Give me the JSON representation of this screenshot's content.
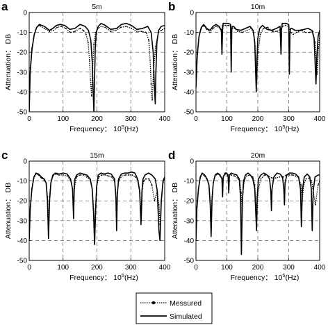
{
  "figure": {
    "xtick_unit_label": "10",
    "xtick_unit_exp": "5",
    "xtick_unit_suffix": "(Hz)",
    "legend": {
      "items": [
        "Messured",
        "Simulated"
      ]
    }
  },
  "chart_data": [
    {
      "panel_letter": "a",
      "type": "line",
      "title": "5m",
      "xlabel": "Frequency：",
      "ylabel": "Attenuation： DB",
      "xlim": [
        0,
        400
      ],
      "ylim": [
        -50,
        0
      ],
      "xticks": [
        0,
        100,
        200,
        300,
        400
      ],
      "yticks": [
        0,
        -10,
        -20,
        -30,
        -40,
        -50
      ],
      "grid": "dashed at x=100,200,300 and y=-10,-20,-30,-40",
      "series": [
        {
          "name": "Simulated",
          "style": "solid",
          "x": [
            0,
            3,
            8,
            15,
            22,
            30,
            45,
            60,
            70,
            80,
            92,
            105,
            120,
            135,
            150,
            165,
            175,
            182,
            186,
            189,
            191,
            193,
            195,
            198,
            204,
            212,
            225,
            240,
            258,
            272,
            287,
            302,
            318,
            335,
            350,
            360,
            366,
            369,
            372,
            374,
            377,
            382,
            390,
            400
          ],
          "y": [
            -50,
            -30,
            -19,
            -11,
            -7.5,
            -6,
            -7,
            -9,
            -8,
            -6.5,
            -6,
            -6.5,
            -8.5,
            -8,
            -6,
            -7,
            -9,
            -14,
            -25,
            -40,
            -50,
            -33,
            -18,
            -10,
            -7,
            -5.5,
            -6.5,
            -8.5,
            -8,
            -6,
            -5.5,
            -6.5,
            -8.5,
            -8,
            -7,
            -10,
            -20,
            -35,
            -46,
            -30,
            -15,
            -9,
            -7,
            -6.5
          ]
        },
        {
          "name": "Messured",
          "style": "dotted-with-markers",
          "x": [
            0,
            3,
            8,
            15,
            22,
            30,
            45,
            60,
            72,
            82,
            95,
            108,
            122,
            135,
            150,
            160,
            168,
            174,
            178,
            181,
            184,
            187,
            191,
            196,
            203,
            212,
            225,
            240,
            256,
            270,
            286,
            302,
            318,
            332,
            345,
            353,
            357,
            360,
            363,
            367,
            373,
            382,
            390,
            400
          ],
          "y": [
            -47,
            -28,
            -18,
            -11,
            -7.5,
            -6.5,
            -8,
            -9.5,
            -9,
            -7.5,
            -7,
            -8,
            -10,
            -9.5,
            -8,
            -9,
            -11,
            -15,
            -24,
            -34,
            -42,
            -28,
            -16,
            -10,
            -8,
            -7,
            -7.5,
            -9.5,
            -9,
            -7.5,
            -7,
            -8,
            -9.5,
            -9.5,
            -10,
            -14,
            -24,
            -36,
            -44,
            -30,
            -17,
            -10,
            -9,
            -8
          ]
        }
      ]
    },
    {
      "panel_letter": "b",
      "type": "line",
      "title": "10m",
      "xlabel": "Frequency：",
      "ylabel": "Attenuation： DB",
      "xlim": [
        0,
        400
      ],
      "ylim": [
        -50,
        0
      ],
      "xticks": [
        0,
        100,
        200,
        300,
        400
      ],
      "yticks": [
        0,
        -10,
        -20,
        -30,
        -40,
        -50
      ],
      "grid": "dashed at x=100,200,300 and y=-10,-20,-30,-40",
      "series": [
        {
          "name": "Simulated",
          "style": "solid",
          "x": [
            0,
            4,
            10,
            17,
            25,
            35,
            45,
            55,
            65,
            75,
            82,
            84,
            86,
            88,
            95,
            105,
            112,
            114,
            116,
            118,
            122,
            130,
            145,
            160,
            175,
            185,
            190,
            193,
            195,
            197,
            200,
            206,
            215,
            230,
            245,
            260,
            272,
            275,
            277,
            279,
            284,
            292,
            300,
            302,
            304,
            306,
            310,
            320,
            335,
            350,
            362,
            375,
            382,
            385,
            388,
            391,
            395,
            400
          ],
          "y": [
            -38,
            -22,
            -12,
            -7.5,
            -6,
            -8,
            -9,
            -7,
            -6,
            -7,
            -9,
            -21,
            -9,
            -5.5,
            -5.5,
            -5.5,
            -6,
            -30,
            -8,
            -7,
            -7,
            -8.5,
            -9,
            -8,
            -7,
            -9,
            -15,
            -30,
            -40,
            -25,
            -13,
            -8,
            -6.5,
            -8.5,
            -9,
            -8,
            -7,
            -21,
            -8,
            -5.5,
            -5.5,
            -5.5,
            -6,
            -31,
            -10,
            -8,
            -8,
            -9,
            -9,
            -8.5,
            -8,
            -9,
            -13,
            -24,
            -36,
            -22,
            -12,
            -9
          ]
        },
        {
          "name": "Messured",
          "style": "dotted-with-markers",
          "x": [
            0,
            4,
            10,
            17,
            25,
            35,
            45,
            55,
            65,
            75,
            82,
            86,
            95,
            105,
            112,
            118,
            125,
            135,
            150,
            165,
            178,
            186,
            191,
            194,
            197,
            201,
            208,
            218,
            232,
            248,
            262,
            274,
            280,
            290,
            300,
            306,
            315,
            325,
            340,
            355,
            367,
            378,
            385,
            389,
            392,
            396,
            400
          ],
          "y": [
            -36,
            -21,
            -12,
            -8,
            -6.5,
            -8.5,
            -10,
            -8,
            -7,
            -7.5,
            -9.5,
            -6.5,
            -6.5,
            -6.5,
            -7,
            -8,
            -8,
            -9.5,
            -10,
            -9,
            -8,
            -10,
            -17,
            -28,
            -34,
            -20,
            -11,
            -8,
            -7.5,
            -9.5,
            -9.5,
            -8.5,
            -7,
            -6.5,
            -7,
            -10,
            -11,
            -10,
            -9,
            -10,
            -10,
            -9.5,
            -15,
            -26,
            -31,
            -18,
            -12
          ]
        }
      ]
    },
    {
      "panel_letter": "c",
      "type": "line",
      "title": "15m",
      "xlabel": "Frequency：",
      "ylabel": "Attenuation： DB",
      "xlim": [
        0,
        400
      ],
      "ylim": [
        -50,
        0
      ],
      "xticks": [
        0,
        100,
        200,
        300,
        400
      ],
      "yticks": [
        0,
        -10,
        -20,
        -30,
        -40,
        -50
      ],
      "grid": "dashed at x=100,200,300 and y=-10,-20,-30,-40",
      "series": [
        {
          "name": "Simulated",
          "style": "solid",
          "x": [
            0,
            3,
            8,
            14,
            20,
            28,
            36,
            44,
            50,
            54,
            57,
            60,
            64,
            70,
            78,
            88,
            100,
            112,
            122,
            128,
            131,
            133,
            135,
            140,
            150,
            160,
            170,
            180,
            186,
            190,
            193,
            196,
            199,
            204,
            212,
            222,
            232,
            242,
            252,
            256,
            258,
            260,
            264,
            272,
            282,
            292,
            302,
            312,
            320,
            326,
            330,
            333,
            336,
            342,
            352,
            362,
            372,
            378,
            383,
            386,
            390,
            395,
            400
          ],
          "y": [
            -40,
            -24,
            -14,
            -8,
            -6,
            -6.5,
            -8,
            -9,
            -11,
            -20,
            -39,
            -20,
            -11,
            -7,
            -6,
            -6.5,
            -6,
            -6.5,
            -9,
            -14,
            -29,
            -13,
            -9,
            -7,
            -6,
            -6.5,
            -7,
            -9,
            -14,
            -26,
            -42,
            -25,
            -13,
            -7,
            -6,
            -6.5,
            -6,
            -6.5,
            -9,
            -18,
            -35,
            -17,
            -9,
            -6.5,
            -6,
            -6,
            -5.5,
            -6,
            -9,
            -15,
            -32,
            -15,
            -9,
            -7,
            -6,
            -7,
            -9,
            -15,
            -35,
            -40,
            -20,
            -10,
            -8
          ]
        },
        {
          "name": "Messured",
          "style": "dotted-with-markers",
          "x": [
            0,
            3,
            8,
            14,
            20,
            28,
            36,
            44,
            50,
            54,
            57,
            60,
            64,
            70,
            78,
            88,
            100,
            112,
            122,
            128,
            131,
            134,
            140,
            150,
            160,
            170,
            180,
            186,
            190,
            193,
            196,
            200,
            206,
            214,
            224,
            234,
            244,
            252,
            256,
            258,
            260,
            265,
            274,
            284,
            294,
            304,
            314,
            322,
            327,
            331,
            334,
            338,
            344,
            354,
            362,
            370,
            378,
            383,
            386,
            390,
            395,
            400
          ],
          "y": [
            -38,
            -23,
            -14,
            -8.5,
            -6.5,
            -7,
            -8.5,
            -9.5,
            -11,
            -18,
            -30,
            -18,
            -11,
            -7.5,
            -6.5,
            -7,
            -7,
            -7.5,
            -9.5,
            -14,
            -25,
            -13,
            -8,
            -7,
            -7,
            -8,
            -9.5,
            -14,
            -24,
            -33,
            -22,
            -12,
            -8,
            -7,
            -7,
            -7.5,
            -8,
            -10,
            -18,
            -28,
            -16,
            -9.5,
            -7.5,
            -7,
            -7,
            -7,
            -8,
            -10,
            -16,
            -30,
            -14,
            -10,
            -9,
            -9,
            -12,
            -20,
            -15,
            -22,
            -32,
            -20,
            -11,
            -9
          ]
        }
      ]
    },
    {
      "panel_letter": "d",
      "type": "line",
      "title": "20m",
      "xlabel": "Frequency：",
      "ylabel": "Attenuation： DB",
      "xlim": [
        0,
        400
      ],
      "ylim": [
        -50,
        0
      ],
      "xticks": [
        0,
        100,
        200,
        300,
        400
      ],
      "yticks": [
        0,
        -10,
        -20,
        -30,
        -40,
        -50
      ],
      "grid": "dashed at x=100,200,300 and y=-10,-20,-30,-40",
      "series": [
        {
          "name": "Simulated",
          "style": "solid",
          "x": [
            0,
            3,
            8,
            14,
            20,
            28,
            36,
            42,
            46,
            49,
            52,
            56,
            62,
            70,
            78,
            84,
            86,
            88,
            94,
            100,
            104,
            106,
            108,
            114,
            122,
            132,
            140,
            144,
            147,
            150,
            154,
            160,
            168,
            176,
            184,
            190,
            194,
            196,
            198,
            202,
            210,
            220,
            230,
            238,
            242,
            244,
            246,
            252,
            262,
            272,
            280,
            284,
            286,
            288,
            294,
            302,
            312,
            322,
            332,
            338,
            341,
            344,
            350,
            360,
            368,
            373,
            376,
            379,
            385,
            395,
            400
          ],
          "y": [
            -40,
            -24,
            -14,
            -8,
            -6,
            -7,
            -9,
            -12,
            -22,
            -38,
            -20,
            -11,
            -7,
            -6,
            -7,
            -9,
            -18,
            -8,
            -6,
            -6,
            -8,
            -16,
            -7,
            -6,
            -6.5,
            -7,
            -9,
            -18,
            -47,
            -20,
            -10,
            -7,
            -6,
            -7,
            -9,
            -14,
            -28,
            -35,
            -18,
            -9,
            -7,
            -6,
            -7,
            -9,
            -15,
            -25,
            -14,
            -8,
            -6,
            -6.5,
            -8,
            -14,
            -22,
            -11,
            -7,
            -6,
            -6,
            -6.5,
            -8,
            -14,
            -33,
            -15,
            -8,
            -6.5,
            -8,
            -14,
            -35,
            -15,
            -8,
            -7,
            -7
          ]
        },
        {
          "name": "Messured",
          "style": "dotted-with-markers",
          "x": [
            0,
            3,
            8,
            14,
            20,
            28,
            36,
            42,
            46,
            49,
            52,
            56,
            62,
            70,
            78,
            86,
            94,
            104,
            114,
            124,
            134,
            142,
            146,
            149,
            152,
            156,
            164,
            174,
            184,
            190,
            194,
            197,
            201,
            210,
            222,
            234,
            246,
            258,
            270,
            282,
            292,
            302,
            312,
            322,
            332,
            340,
            344,
            348,
            356,
            366,
            374,
            380,
            386,
            395,
            400
          ],
          "y": [
            -38,
            -23,
            -14,
            -8.5,
            -6.5,
            -7.5,
            -9.5,
            -12,
            -20,
            -30,
            -18,
            -11,
            -7.5,
            -6.5,
            -7.5,
            -9,
            -6.5,
            -7,
            -7,
            -7.5,
            -8.5,
            -10,
            -16,
            -28,
            -16,
            -10,
            -7.5,
            -7,
            -8,
            -12,
            -22,
            -28,
            -15,
            -9,
            -7,
            -7.5,
            -8.5,
            -8.5,
            -8,
            -8,
            -7,
            -7,
            -7,
            -7.5,
            -8.5,
            -12,
            -20,
            -12,
            -9,
            -8.5,
            -10,
            -16,
            -22,
            -12,
            -10
          ]
        }
      ]
    }
  ]
}
